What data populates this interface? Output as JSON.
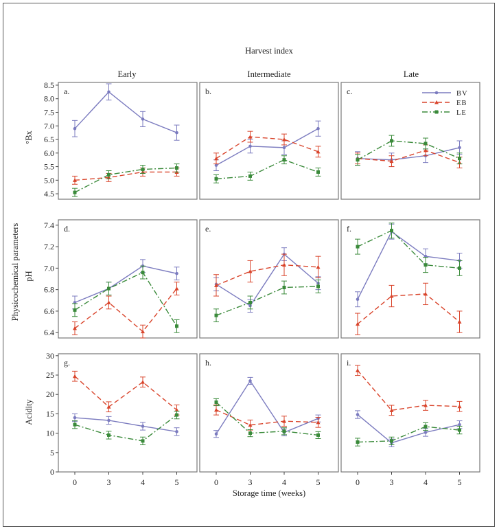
{
  "figure": {
    "title": "Harvest index",
    "x_label": "Storage time (weeks)",
    "y_label_group": "Physicochemical parameters",
    "columns": [
      "Early",
      "Intermediate",
      "Late"
    ],
    "row_labels": [
      "°Bx",
      "pH",
      "Acidity"
    ],
    "x_ticks": [
      "0",
      "3",
      "4",
      "5"
    ],
    "legend": [
      {
        "name": "BV",
        "color": "#7b7bbf",
        "dash": "solid",
        "marker": "dot"
      },
      {
        "name": "EB",
        "color": "#d9442b",
        "dash": "dashed",
        "marker": "triangle"
      },
      {
        "name": "LE",
        "color": "#3a8a3a",
        "dash": "dashdot",
        "marker": "square"
      }
    ]
  },
  "chart_data": [
    {
      "type": "line",
      "panel_label": "a.",
      "ylabel": "°Bx",
      "ylim": [
        4.3,
        8.6
      ],
      "y_ticks": [
        "4.5",
        "5.0",
        "5.5",
        "6.0",
        "6.5",
        "7.0",
        "7.5",
        "8.0",
        "8.5"
      ],
      "x": [
        "0",
        "3",
        "4",
        "5"
      ],
      "series": [
        {
          "name": "BV",
          "values": [
            6.9,
            8.25,
            7.25,
            6.75
          ],
          "err": [
            0.3,
            0.3,
            0.28,
            0.28
          ]
        },
        {
          "name": "EB",
          "values": [
            5.0,
            5.1,
            5.3,
            5.3
          ],
          "err": [
            0.15,
            0.15,
            0.15,
            0.15
          ]
        },
        {
          "name": "LE",
          "values": [
            4.55,
            5.2,
            5.4,
            5.45
          ],
          "err": [
            0.15,
            0.15,
            0.15,
            0.15
          ]
        }
      ]
    },
    {
      "type": "line",
      "panel_label": "b.",
      "ylabel": "°Bx",
      "ylim": [
        4.3,
        8.6
      ],
      "y_ticks": [],
      "x": [
        "0",
        "3",
        "4",
        "5"
      ],
      "series": [
        {
          "name": "BV",
          "values": [
            5.55,
            6.25,
            6.2,
            6.9
          ],
          "err": [
            0.2,
            0.25,
            0.25,
            0.28
          ]
        },
        {
          "name": "EB",
          "values": [
            5.8,
            6.6,
            6.5,
            6.05
          ],
          "err": [
            0.2,
            0.2,
            0.2,
            0.2
          ]
        },
        {
          "name": "LE",
          "values": [
            5.05,
            5.15,
            5.75,
            5.3
          ],
          "err": [
            0.15,
            0.15,
            0.15,
            0.15
          ]
        }
      ]
    },
    {
      "type": "line",
      "panel_label": "c.",
      "ylabel": "°Bx",
      "ylim": [
        4.3,
        8.6
      ],
      "y_ticks": [],
      "x": [
        "0",
        "3",
        "4",
        "5"
      ],
      "series": [
        {
          "name": "BV",
          "values": [
            5.8,
            5.75,
            5.9,
            6.2
          ],
          "err": [
            0.25,
            0.25,
            0.25,
            0.25
          ]
        },
        {
          "name": "EB",
          "values": [
            5.8,
            5.7,
            6.1,
            5.65
          ],
          "err": [
            0.2,
            0.2,
            0.2,
            0.2
          ]
        },
        {
          "name": "LE",
          "values": [
            5.75,
            6.45,
            6.35,
            5.8
          ],
          "err": [
            0.2,
            0.2,
            0.2,
            0.2
          ]
        }
      ]
    },
    {
      "type": "line",
      "panel_label": "d.",
      "ylabel": "pH",
      "ylim": [
        6.35,
        7.45
      ],
      "y_ticks": [
        "6.4",
        "6.6",
        "6.8",
        "7.0",
        "7.2",
        "7.4"
      ],
      "x": [
        "0",
        "3",
        "4",
        "5"
      ],
      "series": [
        {
          "name": "BV",
          "values": [
            6.68,
            6.81,
            7.02,
            6.95
          ],
          "err": [
            0.06,
            0.06,
            0.06,
            0.06
          ]
        },
        {
          "name": "EB",
          "values": [
            6.44,
            6.68,
            6.41,
            6.81
          ],
          "err": [
            0.06,
            0.06,
            0.06,
            0.06
          ]
        },
        {
          "name": "LE",
          "values": [
            6.61,
            6.81,
            6.96,
            6.46
          ],
          "err": [
            0.06,
            0.06,
            0.06,
            0.06
          ]
        }
      ]
    },
    {
      "type": "line",
      "panel_label": "e.",
      "ylabel": "pH",
      "ylim": [
        6.35,
        7.45
      ],
      "y_ticks": [],
      "x": [
        "0",
        "3",
        "4",
        "5"
      ],
      "series": [
        {
          "name": "BV",
          "values": [
            6.85,
            6.65,
            7.13,
            6.86
          ],
          "err": [
            0.06,
            0.06,
            0.06,
            0.06
          ]
        },
        {
          "name": "EB",
          "values": [
            6.84,
            6.97,
            7.03,
            7.01
          ],
          "err": [
            0.1,
            0.1,
            0.1,
            0.1
          ]
        },
        {
          "name": "LE",
          "values": [
            6.56,
            6.68,
            6.82,
            6.83
          ],
          "err": [
            0.06,
            0.06,
            0.06,
            0.06
          ]
        }
      ]
    },
    {
      "type": "line",
      "panel_label": "f.",
      "ylabel": "pH",
      "ylim": [
        6.35,
        7.45
      ],
      "y_ticks": [],
      "x": [
        "0",
        "3",
        "4",
        "5"
      ],
      "series": [
        {
          "name": "BV",
          "values": [
            6.71,
            7.34,
            7.11,
            7.07
          ],
          "err": [
            0.07,
            0.07,
            0.07,
            0.07
          ]
        },
        {
          "name": "EB",
          "values": [
            6.48,
            6.74,
            6.76,
            6.5
          ],
          "err": [
            0.1,
            0.1,
            0.1,
            0.1
          ]
        },
        {
          "name": "LE",
          "values": [
            7.2,
            7.35,
            7.03,
            7.0
          ],
          "err": [
            0.07,
            0.07,
            0.07,
            0.07
          ]
        }
      ]
    },
    {
      "type": "line",
      "panel_label": "g.",
      "ylabel": "Acidity",
      "ylim": [
        0,
        30.5
      ],
      "y_ticks": [
        "0",
        "5",
        "10",
        "15",
        "20",
        "25",
        "30"
      ],
      "x": [
        "0",
        "3",
        "4",
        "5"
      ],
      "series": [
        {
          "name": "BV",
          "values": [
            14,
            13.3,
            11.8,
            10.4
          ],
          "err": [
            1.0,
            1.0,
            1.0,
            1.0
          ]
        },
        {
          "name": "EB",
          "values": [
            24.7,
            16.8,
            23.2,
            16.0
          ],
          "err": [
            1.3,
            1.3,
            1.3,
            1.3
          ]
        },
        {
          "name": "LE",
          "values": [
            12.2,
            9.5,
            8.0,
            14.7
          ],
          "err": [
            1.0,
            1.0,
            1.0,
            1.0
          ]
        }
      ]
    },
    {
      "type": "line",
      "panel_label": "h.",
      "ylabel": "Acidity",
      "ylim": [
        0,
        30.5
      ],
      "y_ticks": [],
      "x": [
        "0",
        "3",
        "4",
        "5"
      ],
      "series": [
        {
          "name": "BV",
          "values": [
            9.8,
            23.5,
            10.2,
            13.8
          ],
          "err": [
            0.9,
            0.9,
            0.9,
            0.9
          ]
        },
        {
          "name": "EB",
          "values": [
            16.0,
            12.1,
            13.1,
            12.8
          ],
          "err": [
            1.3,
            1.3,
            1.3,
            1.3
          ]
        },
        {
          "name": "LE",
          "values": [
            18.0,
            10.0,
            10.5,
            9.5
          ],
          "err": [
            0.9,
            0.9,
            0.9,
            0.9
          ]
        }
      ]
    },
    {
      "type": "line",
      "panel_label": "i.",
      "ylabel": "Acidity",
      "ylim": [
        0,
        30.5
      ],
      "y_ticks": [],
      "x": [
        "0",
        "3",
        "4",
        "5"
      ],
      "series": [
        {
          "name": "BV",
          "values": [
            14.8,
            7.5,
            10.2,
            12.2
          ],
          "err": [
            1.0,
            1.0,
            1.0,
            1.0
          ]
        },
        {
          "name": "EB",
          "values": [
            26.2,
            15.9,
            17.2,
            16.9
          ],
          "err": [
            1.3,
            1.3,
            1.3,
            1.3
          ]
        },
        {
          "name": "LE",
          "values": [
            7.7,
            8.0,
            11.7,
            10.8
          ],
          "err": [
            1.0,
            1.0,
            1.0,
            1.0
          ]
        }
      ]
    }
  ]
}
